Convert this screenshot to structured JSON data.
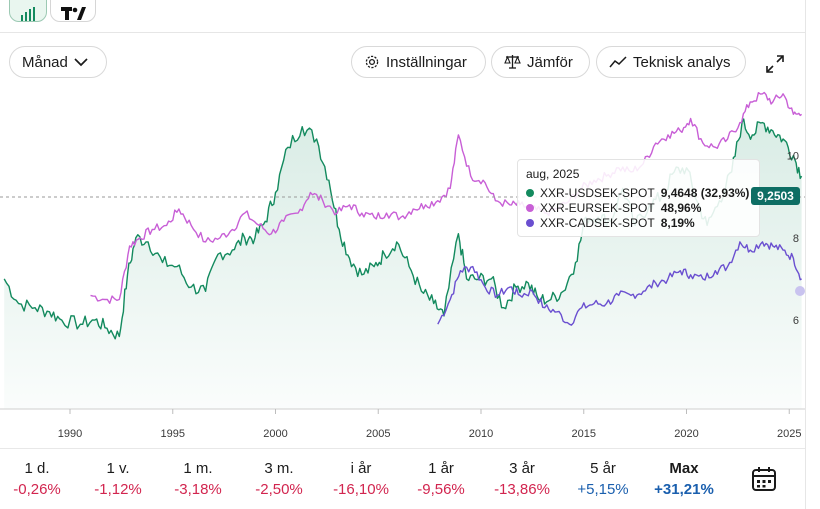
{
  "toolbar": {
    "period_select": "Månad",
    "settings_label": "Inställningar",
    "compare_label": "Jämför",
    "analysis_label": "Teknisk analys"
  },
  "tooltip": {
    "date": "aug, 2025",
    "rows": [
      {
        "name": "XXR-USDSEK-SPOT",
        "value": "9,4648 (32,93%)",
        "color": "#138a5e"
      },
      {
        "name": "XXR-EURSEK-SPOT",
        "value": "48,96%",
        "color": "#c85fd6"
      },
      {
        "name": "XXR-CADSEK-SPOT",
        "value": "8,19%",
        "color": "#6a4fd0"
      }
    ]
  },
  "price_tag": "9,2503",
  "chart_data": {
    "type": "line",
    "x_ticks": [
      "1990",
      "1995",
      "2000",
      "2005",
      "2010",
      "2015",
      "2020",
      "2025"
    ],
    "y_ticks": [
      "6",
      "8",
      "10"
    ],
    "ylim": [
      4.3,
      11.3
    ],
    "series": [
      {
        "name": "XXR-USDSEK-SPOT",
        "color": "#138a5e",
        "points": [
          [
            1986.8,
            7.0
          ],
          [
            1987.5,
            6.4
          ],
          [
            1988.3,
            6.3
          ],
          [
            1989.0,
            6.2
          ],
          [
            1989.6,
            6.0
          ],
          [
            1990.5,
            5.9
          ],
          [
            1991.2,
            6.0
          ],
          [
            1991.8,
            5.8
          ],
          [
            1992.4,
            5.6
          ],
          [
            1992.8,
            7.1
          ],
          [
            1993.2,
            8.0
          ],
          [
            1993.8,
            7.9
          ],
          [
            1994.5,
            7.4
          ],
          [
            1995.2,
            7.3
          ],
          [
            1995.9,
            6.8
          ],
          [
            1996.6,
            6.7
          ],
          [
            1997.2,
            7.6
          ],
          [
            1997.9,
            7.7
          ],
          [
            1998.5,
            8.0
          ],
          [
            1999.0,
            8.0
          ],
          [
            1999.5,
            8.4
          ],
          [
            2000.0,
            9.1
          ],
          [
            2000.6,
            10.2
          ],
          [
            2001.3,
            10.7
          ],
          [
            2002.0,
            10.4
          ],
          [
            2002.6,
            9.4
          ],
          [
            2003.1,
            8.2
          ],
          [
            2003.6,
            7.5
          ],
          [
            2004.2,
            7.1
          ],
          [
            2004.8,
            7.3
          ],
          [
            2005.3,
            7.6
          ],
          [
            2005.9,
            7.9
          ],
          [
            2006.5,
            7.3
          ],
          [
            2007.1,
            6.7
          ],
          [
            2007.7,
            6.4
          ],
          [
            2008.2,
            6.1
          ],
          [
            2008.9,
            8.1
          ],
          [
            2009.3,
            7.0
          ],
          [
            2009.9,
            7.0
          ],
          [
            2010.5,
            7.0
          ],
          [
            2011.1,
            6.3
          ],
          [
            2011.7,
            6.8
          ],
          [
            2012.3,
            6.9
          ],
          [
            2012.8,
            6.5
          ],
          [
            2013.4,
            6.5
          ],
          [
            2014.0,
            6.7
          ],
          [
            2014.6,
            7.4
          ],
          [
            2015.1,
            8.5
          ],
          [
            2015.7,
            8.5
          ],
          [
            2016.3,
            8.4
          ],
          [
            2016.9,
            9.2
          ],
          [
            2017.5,
            8.3
          ],
          [
            2018.2,
            8.8
          ],
          [
            2018.8,
            9.0
          ],
          [
            2019.4,
            9.6
          ],
          [
            2020.0,
            9.7
          ],
          [
            2020.5,
            8.9
          ],
          [
            2021.0,
            8.3
          ],
          [
            2021.6,
            8.9
          ],
          [
            2022.2,
            9.6
          ],
          [
            2022.7,
            10.8
          ],
          [
            2023.2,
            10.5
          ],
          [
            2023.7,
            10.8
          ],
          [
            2024.2,
            10.6
          ],
          [
            2024.7,
            10.4
          ],
          [
            2025.2,
            10.0
          ],
          [
            2025.6,
            9.5
          ]
        ]
      },
      {
        "name": "XXR-EURSEK-SPOT",
        "color": "#c85fd6",
        "points": [
          [
            1991.0,
            6.6
          ],
          [
            1991.7,
            6.5
          ],
          [
            1992.4,
            6.5
          ],
          [
            1992.9,
            7.8
          ],
          [
            1993.4,
            8.0
          ],
          [
            1994.0,
            8.2
          ],
          [
            1994.7,
            8.3
          ],
          [
            1995.3,
            8.7
          ],
          [
            1995.9,
            8.3
          ],
          [
            1996.6,
            7.9
          ],
          [
            1997.3,
            8.0
          ],
          [
            1997.9,
            8.2
          ],
          [
            1998.5,
            8.6
          ],
          [
            1999.2,
            8.3
          ],
          [
            1999.8,
            8.1
          ],
          [
            2000.4,
            8.4
          ],
          [
            2001.1,
            8.6
          ],
          [
            2001.7,
            9.1
          ],
          [
            2002.3,
            8.9
          ],
          [
            2003.0,
            8.6
          ],
          [
            2003.6,
            8.8
          ],
          [
            2004.2,
            8.6
          ],
          [
            2004.8,
            8.5
          ],
          [
            2005.4,
            8.6
          ],
          [
            2006.1,
            8.5
          ],
          [
            2006.7,
            8.7
          ],
          [
            2007.3,
            8.8
          ],
          [
            2007.9,
            8.9
          ],
          [
            2008.5,
            9.2
          ],
          [
            2008.9,
            10.5
          ],
          [
            2009.5,
            9.5
          ],
          [
            2010.1,
            9.4
          ],
          [
            2010.7,
            8.9
          ],
          [
            2011.4,
            8.8
          ],
          [
            2011.9,
            8.8
          ],
          [
            2012.5,
            8.7
          ],
          [
            2013.1,
            8.6
          ],
          [
            2013.7,
            8.7
          ],
          [
            2014.3,
            8.9
          ],
          [
            2014.9,
            9.2
          ],
          [
            2015.5,
            9.4
          ],
          [
            2016.1,
            9.5
          ],
          [
            2016.7,
            9.7
          ],
          [
            2017.3,
            9.6
          ],
          [
            2017.9,
            9.8
          ],
          [
            2018.5,
            10.3
          ],
          [
            2019.1,
            10.5
          ],
          [
            2019.7,
            10.6
          ],
          [
            2020.2,
            10.9
          ],
          [
            2020.8,
            10.3
          ],
          [
            2021.4,
            10.2
          ],
          [
            2022.0,
            10.4
          ],
          [
            2022.6,
            10.8
          ],
          [
            2023.1,
            11.3
          ],
          [
            2023.7,
            11.5
          ],
          [
            2024.2,
            11.3
          ],
          [
            2024.7,
            11.5
          ],
          [
            2025.2,
            11.0
          ],
          [
            2025.6,
            11.0
          ]
        ]
      },
      {
        "name": "XXR-CADSEK-SPOT",
        "color": "#6a4fd0",
        "points": [
          [
            2007.9,
            5.9
          ],
          [
            2008.5,
            6.5
          ],
          [
            2009.0,
            7.2
          ],
          [
            2009.6,
            7.3
          ],
          [
            2010.2,
            6.8
          ],
          [
            2010.8,
            6.6
          ],
          [
            2011.4,
            6.8
          ],
          [
            2011.9,
            6.6
          ],
          [
            2012.5,
            6.7
          ],
          [
            2013.1,
            6.3
          ],
          [
            2013.7,
            6.2
          ],
          [
            2014.3,
            5.9
          ],
          [
            2014.9,
            6.3
          ],
          [
            2015.5,
            6.4
          ],
          [
            2016.1,
            6.4
          ],
          [
            2016.7,
            6.6
          ],
          [
            2017.3,
            6.6
          ],
          [
            2017.9,
            6.7
          ],
          [
            2018.5,
            6.9
          ],
          [
            2019.1,
            7.0
          ],
          [
            2019.7,
            7.2
          ],
          [
            2020.2,
            7.1
          ],
          [
            2020.8,
            7.0
          ],
          [
            2021.4,
            7.2
          ],
          [
            2022.0,
            7.3
          ],
          [
            2022.6,
            7.9
          ],
          [
            2023.1,
            7.7
          ],
          [
            2023.7,
            7.9
          ],
          [
            2024.2,
            7.8
          ],
          [
            2024.7,
            7.7
          ],
          [
            2025.2,
            7.5
          ],
          [
            2025.6,
            7.0
          ]
        ]
      }
    ]
  },
  "periods": [
    {
      "label": "1 d.",
      "value": "-0,26%",
      "sign": "neg"
    },
    {
      "label": "1 v.",
      "value": "-1,12%",
      "sign": "neg"
    },
    {
      "label": "1 m.",
      "value": "-3,18%",
      "sign": "neg"
    },
    {
      "label": "3 m.",
      "value": "-2,50%",
      "sign": "neg"
    },
    {
      "label": "i år",
      "value": "-16,10%",
      "sign": "neg"
    },
    {
      "label": "1 år",
      "value": "-9,56%",
      "sign": "neg"
    },
    {
      "label": "3 år",
      "value": "-13,86%",
      "sign": "neg"
    },
    {
      "label": "5 år",
      "value": "+5,15%",
      "sign": "pos"
    },
    {
      "label": "Max",
      "value": "+31,21%",
      "sign": "pos"
    }
  ]
}
